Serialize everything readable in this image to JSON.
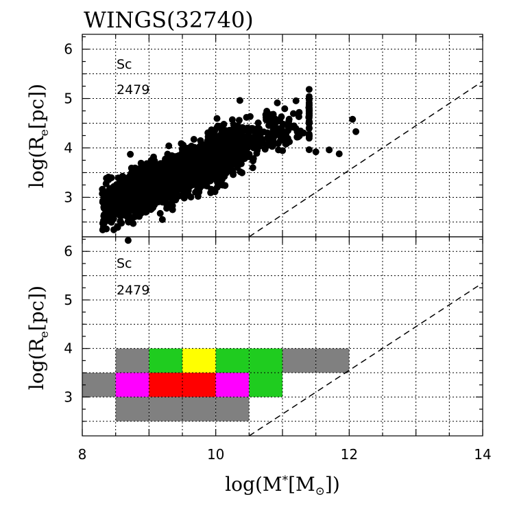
{
  "title": "WINGS(32740)",
  "colors": {
    "grey": "#808080",
    "green": "#1fcc1f",
    "yellow": "#ffff00",
    "red": "#ff0000",
    "magenta": "#ff00ff"
  },
  "chart_data": [
    {
      "type": "scatter",
      "panel": "top",
      "title": "WINGS(32740)",
      "morph_type": "Sc",
      "count": "2479",
      "xlabel": "log(M*[M⊙])",
      "ylabel": "log(Re[pc])",
      "xlim": [
        8,
        14
      ],
      "ylim": [
        2.2,
        6.3
      ],
      "x_ticks": [
        "8",
        "10",
        "12",
        "14"
      ],
      "y_ticks": [
        "3",
        "4",
        "5",
        "6"
      ],
      "grid": true,
      "dashed_line": {
        "x": [
          10.5,
          14
        ],
        "y": [
          2.2,
          5.35
        ]
      },
      "trend": {
        "slope": 0.6,
        "intercept": -2.2,
        "x_range": [
          8.3,
          11.4
        ],
        "y_scatter": 0.22
      },
      "outliers": [
        {
          "x": 12.05,
          "y": 4.58
        },
        {
          "x": 12.1,
          "y": 4.33
        },
        {
          "x": 11.7,
          "y": 3.96
        },
        {
          "x": 11.85,
          "y": 3.88
        },
        {
          "x": 11.5,
          "y": 3.92
        },
        {
          "x": 10.0,
          "y": 4.1
        },
        {
          "x": 10.2,
          "y": 4.15
        },
        {
          "x": 10.7,
          "y": 4.1
        },
        {
          "x": 9.2,
          "y": 2.55
        },
        {
          "x": 8.5,
          "y": 2.75
        }
      ]
    },
    {
      "type": "heatmap",
      "panel": "bottom",
      "morph_type": "Sc",
      "count": "2479",
      "xlabel": "log(M*[M⊙])",
      "ylabel": "log(Re[pc])",
      "xlim": [
        8,
        14
      ],
      "ylim": [
        2.2,
        6.3
      ],
      "x_ticks": [
        "8",
        "10",
        "12",
        "14"
      ],
      "y_ticks": [
        "3",
        "4",
        "5",
        "6"
      ],
      "grid": true,
      "dashed_line": {
        "x": [
          10.5,
          14
        ],
        "y": [
          2.2,
          5.35
        ]
      },
      "bin_size": {
        "x": 0.5,
        "y": 0.5
      },
      "cells": [
        {
          "x0": 8.5,
          "y0": 3.5,
          "color": "grey"
        },
        {
          "x0": 9.0,
          "y0": 3.5,
          "color": "green"
        },
        {
          "x0": 9.5,
          "y0": 3.5,
          "color": "yellow"
        },
        {
          "x0": 10.0,
          "y0": 3.5,
          "color": "green"
        },
        {
          "x0": 10.5,
          "y0": 3.5,
          "color": "green"
        },
        {
          "x0": 11.0,
          "y0": 3.5,
          "color": "grey"
        },
        {
          "x0": 11.5,
          "y0": 3.5,
          "color": "grey"
        },
        {
          "x0": 8.0,
          "y0": 3.0,
          "color": "grey"
        },
        {
          "x0": 8.5,
          "y0": 3.0,
          "color": "magenta"
        },
        {
          "x0": 9.0,
          "y0": 3.0,
          "color": "red"
        },
        {
          "x0": 9.5,
          "y0": 3.0,
          "color": "red"
        },
        {
          "x0": 10.0,
          "y0": 3.0,
          "color": "magenta"
        },
        {
          "x0": 10.5,
          "y0": 3.0,
          "color": "green"
        },
        {
          "x0": 8.5,
          "y0": 2.5,
          "color": "grey"
        },
        {
          "x0": 9.0,
          "y0": 2.5,
          "color": "grey"
        },
        {
          "x0": 9.5,
          "y0": 2.5,
          "color": "grey"
        },
        {
          "x0": 10.0,
          "y0": 2.5,
          "color": "grey"
        }
      ]
    }
  ]
}
